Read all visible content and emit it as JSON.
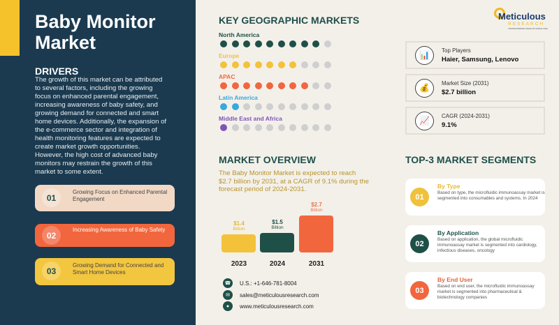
{
  "title": "Baby Monitor Market",
  "drivers": {
    "heading": "DRIVERS",
    "text": "The growth of this market can be attributed to several factors, including the growing focus on enhanced parental engagement, increasing awareness of baby safety, and growing demand for connected and smart home devices. Additionally, the expansion of the e-commerce sector and integration of health monitoring features are expected to create market growth opportunities. However, the high cost of advanced baby monitors may restrain the growth of this market to some extent.",
    "items": [
      {
        "num": "01",
        "label": "Growing Focus on Enhanced Parental Engagement"
      },
      {
        "num": "02",
        "label": "Increasing Awareness of Baby Safety"
      },
      {
        "num": "03",
        "label": "Growing Demand for Connected and Smart Home Devices"
      }
    ]
  },
  "geo": {
    "heading": "KEY GEOGRAPHIC MARKETS",
    "regions": [
      {
        "name": "North America",
        "filled": 9,
        "total": 10,
        "color": "#1f5048"
      },
      {
        "name": "Europe",
        "filled": 7,
        "total": 10,
        "color": "#f3c23a"
      },
      {
        "name": "APAC",
        "filled": 8,
        "total": 10,
        "color": "#f2663d"
      },
      {
        "name": "Latin America",
        "filled": 2,
        "total": 10,
        "color": "#37a9dc"
      },
      {
        "name": "Middle East and Africa",
        "filled": 1,
        "total": 10,
        "color": "#7e55b5"
      }
    ]
  },
  "logo": {
    "name": "Meticulous",
    "sub": "RESEARCH",
    "tagline": "TRANSFORMING INSIGHTS SINCE 2010"
  },
  "info": [
    {
      "icon": "bar-chart-icon",
      "label": "Top Players",
      "value": "Haier, Samsung, Lenovo"
    },
    {
      "icon": "money-bag-icon",
      "label": "Market Size (2031)",
      "value": "$2.7 billion"
    },
    {
      "icon": "line-chart-icon",
      "label": "CAGR (2024-2031)",
      "value": "9.1%"
    }
  ],
  "overview": {
    "heading": "MARKET OVERVIEW",
    "text": "The Baby Monitor Market is expected to reach $2.7 billion by 2031, at a CAGR of 9.1% during the forecast period of 2024-2031."
  },
  "chart_data": {
    "type": "bar",
    "categories": [
      "2023",
      "2024",
      "2031"
    ],
    "values": [
      1.4,
      1.5,
      2.7
    ],
    "data_labels": [
      "$1.4",
      "$1.5",
      "$2.7"
    ],
    "unit": "Billion",
    "colors": [
      "#f3c23a",
      "#1f5048",
      "#f2663d"
    ]
  },
  "contact": {
    "phone": "U.S.: +1-646-781-8004",
    "email": "sales@meticulousresearch.com",
    "web": "www.meticulousresearch.com"
  },
  "segments": {
    "heading": "TOP-3 MARKET SEGMENTS",
    "items": [
      {
        "num": "01",
        "title": "By Type",
        "color": "#f0c13a",
        "text": "Based on type, the microfluidic immunoassay market is segmented into consumables and systems. In 2024"
      },
      {
        "num": "02",
        "title": "By Application",
        "color": "#1f5048",
        "text": "Based on application, the global microfluidic immunoassay market is segmented into cardiology, infectious diseases, oncology"
      },
      {
        "num": "03",
        "title": "By End User",
        "color": "#f2663d",
        "text": "Based on end user, the microfluidic immunoassay market is segmented into pharmaceutical & biotechnology companies"
      }
    ]
  }
}
